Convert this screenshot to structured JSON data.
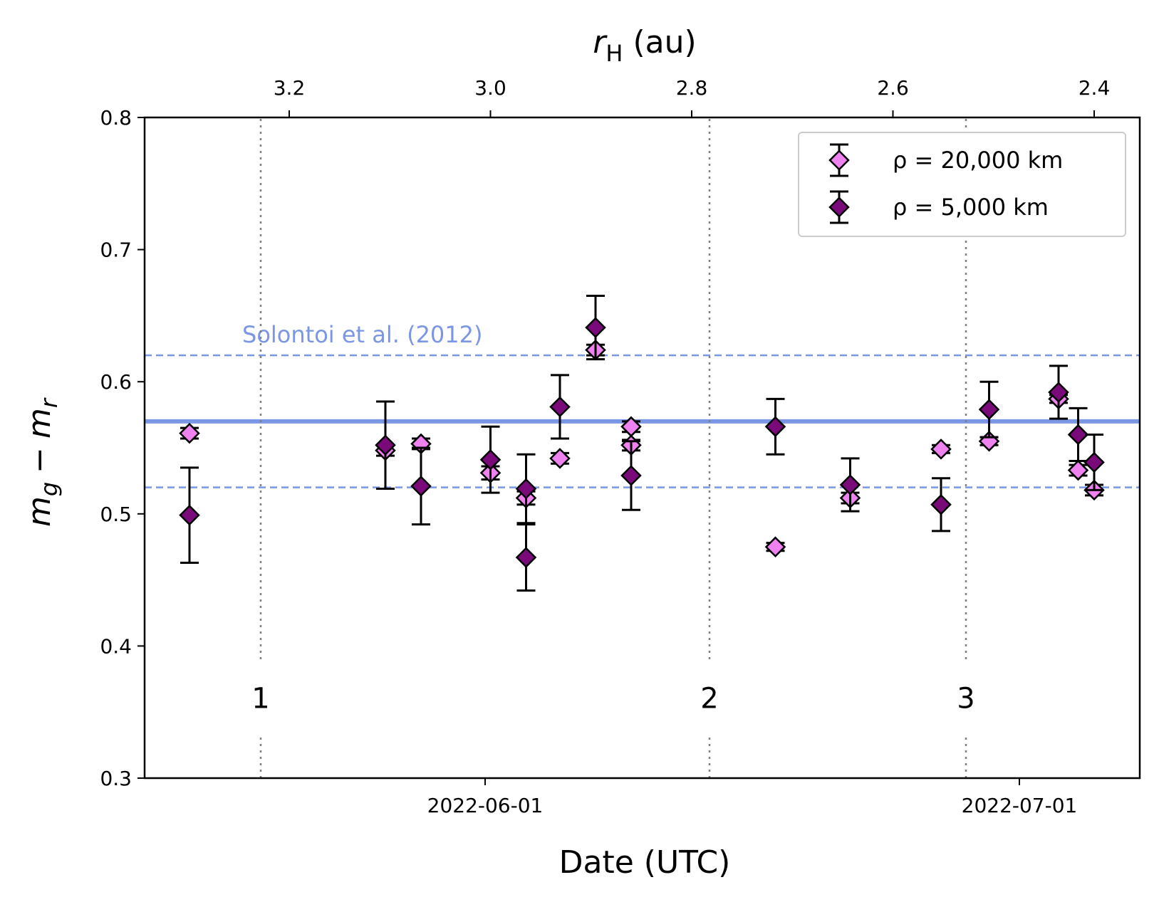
{
  "chart_data": {
    "type": "scatter",
    "xlabel": "Date (UTC)",
    "top_axis_label": {
      "symbol": "r",
      "subscript": "H",
      "unit": "(au)"
    },
    "ylabel": {
      "m1": "m",
      "sub1": "g",
      "minus": "−",
      "m2": "m",
      "sub2": "r"
    },
    "x_range_days": [
      -19.5,
      36.5
    ],
    "ylim": [
      0.3,
      0.8
    ],
    "y_ticks": [
      "0.3",
      "0.4",
      "0.5",
      "0.6",
      "0.7",
      "0.8"
    ],
    "x_ticks": [
      {
        "day": 0,
        "label": "2022-06-01"
      },
      {
        "day": 30,
        "label": "2022-07-01"
      }
    ],
    "top_ticks": [
      {
        "day": -11,
        "label": "3.2"
      },
      {
        "day": 0.3,
        "label": "3.0"
      },
      {
        "day": 11.6,
        "label": "2.8"
      },
      {
        "day": 22.9,
        "label": "2.6"
      },
      {
        "day": 34.2,
        "label": "2.4"
      }
    ],
    "reference": {
      "label": "Solontoi et al. (2012)",
      "mean": 0.57,
      "lower": 0.52,
      "upper": 0.62,
      "color": "#7b96e4"
    },
    "regions": [
      {
        "label": "1",
        "day": -12.6
      },
      {
        "label": "2",
        "day": 12.6
      },
      {
        "label": "3",
        "day": 27
      }
    ],
    "series": [
      {
        "name": "ρ = 20,000 km",
        "color": "#ee82ee",
        "points": [
          {
            "day": -16.6,
            "y": 0.561,
            "err": 0.004
          },
          {
            "day": -5.6,
            "y": 0.548,
            "err": 0.004
          },
          {
            "day": -3.6,
            "y": 0.553,
            "err": 0.004
          },
          {
            "day": 0.3,
            "y": 0.531,
            "err": 0.005
          },
          {
            "day": 2.3,
            "y": 0.512,
            "err": 0.005
          },
          {
            "day": 4.2,
            "y": 0.542,
            "err": 0.004
          },
          {
            "day": 6.2,
            "y": 0.624,
            "err": 0.004
          },
          {
            "day": 8.2,
            "y": 0.566,
            "err": 0.004
          },
          {
            "day": 8.2,
            "y": 0.552,
            "err": 0.004
          },
          {
            "day": 16.3,
            "y": 0.475,
            "err": 0.003
          },
          {
            "day": 20.5,
            "y": 0.512,
            "err": 0.004
          },
          {
            "day": 25.6,
            "y": 0.549,
            "err": 0.003
          },
          {
            "day": 28.3,
            "y": 0.555,
            "err": 0.003
          },
          {
            "day": 32.2,
            "y": 0.587,
            "err": 0.003
          },
          {
            "day": 33.3,
            "y": 0.533,
            "err": 0.004
          },
          {
            "day": 34.2,
            "y": 0.518,
            "err": 0.004
          }
        ]
      },
      {
        "name": "ρ = 5,000 km",
        "color": "#7a0a7a",
        "points": [
          {
            "day": -16.6,
            "y": 0.499,
            "err": 0.036
          },
          {
            "day": -5.6,
            "y": 0.552,
            "err": 0.033
          },
          {
            "day": -3.6,
            "y": 0.521,
            "err": 0.029
          },
          {
            "day": 0.3,
            "y": 0.541,
            "err": 0.025
          },
          {
            "day": 2.3,
            "y": 0.519,
            "err": 0.026
          },
          {
            "day": 2.3,
            "y": 0.467,
            "err": 0.025
          },
          {
            "day": 4.2,
            "y": 0.581,
            "err": 0.024
          },
          {
            "day": 6.2,
            "y": 0.641,
            "err": 0.024
          },
          {
            "day": 8.2,
            "y": 0.529,
            "err": 0.026
          },
          {
            "day": 16.3,
            "y": 0.566,
            "err": 0.021
          },
          {
            "day": 20.5,
            "y": 0.522,
            "err": 0.02
          },
          {
            "day": 25.6,
            "y": 0.507,
            "err": 0.02
          },
          {
            "day": 28.3,
            "y": 0.579,
            "err": 0.021
          },
          {
            "day": 32.2,
            "y": 0.592,
            "err": 0.02
          },
          {
            "day": 33.3,
            "y": 0.56,
            "err": 0.02
          },
          {
            "day": 34.2,
            "y": 0.539,
            "err": 0.021
          }
        ]
      }
    ]
  }
}
